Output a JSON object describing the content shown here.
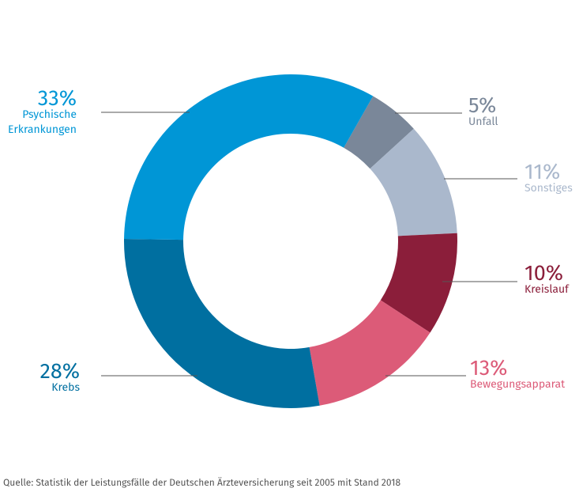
{
  "chart_data": {
    "type": "donut",
    "categories": [
      "Unfall",
      "Sonstiges",
      "Kreislauf",
      "Bewegungsapparat",
      "Krebs",
      "Psychische Erkrankungen"
    ],
    "values": [
      5,
      11,
      10,
      13,
      28,
      33
    ],
    "value_labels": [
      "5%",
      "11%",
      "10%",
      "13%",
      "28%",
      "33%"
    ],
    "colors": [
      "#7a8799",
      "#aab8cc",
      "#8b1e3a",
      "#dc5b78",
      "#006fa0",
      "#0096d6"
    ],
    "source": "Quelle:  Statistik der Leistungsfälle der Deutschen Ärzteversicherung seit 2005 mit Stand 2018"
  }
}
